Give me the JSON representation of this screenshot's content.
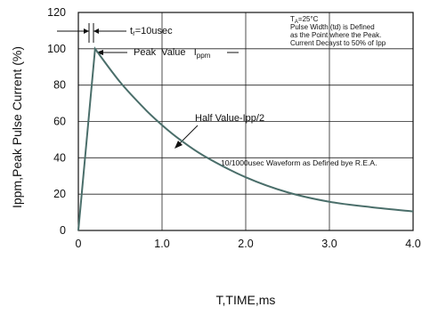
{
  "chart_data": {
    "type": "line",
    "xlabel": "T,TIME,ms",
    "ylabel": "Ippm,Peak Pulse Current (%)",
    "xlim": [
      0,
      4.0
    ],
    "ylim": [
      0,
      120
    ],
    "x_ticks": [
      "0",
      "1.0",
      "2.0",
      "3.0",
      "4.0"
    ],
    "y_ticks": [
      "0",
      "20",
      "40",
      "60",
      "80",
      "100",
      "120"
    ],
    "grid": true,
    "series": [
      {
        "points": [
          [
            0,
            0
          ],
          [
            0.2,
            100
          ],
          [
            0.5,
            81.6
          ],
          [
            0.8,
            66.6
          ],
          [
            1.0,
            58.0
          ],
          [
            1.2,
            50.5
          ],
          [
            1.5,
            41.1
          ],
          [
            2.0,
            29.3
          ],
          [
            2.5,
            21.0
          ],
          [
            3.0,
            15.8
          ],
          [
            3.5,
            12.8
          ],
          [
            4.0,
            10.5
          ]
        ]
      }
    ],
    "annotations": {
      "rise_time": "tr=10usec",
      "peak_value": "Peak  Value",
      "peak_value_symbol": "I",
      "peak_value_sub": "ppm",
      "half_value": "Half Value-Ipp/2",
      "waveform": "10/1000usec  Waveform as Defined bye R.E.A.",
      "conditions": [
        "TA=25°C",
        "Pulse   Width (td) is  Defined",
        "as the Point  where the Peak.",
        "Current  Decayst to 50% of Ipp"
      ]
    },
    "colors": {
      "curve": "#4a6e6a",
      "grid": "#222222",
      "frame": "#111111"
    }
  }
}
